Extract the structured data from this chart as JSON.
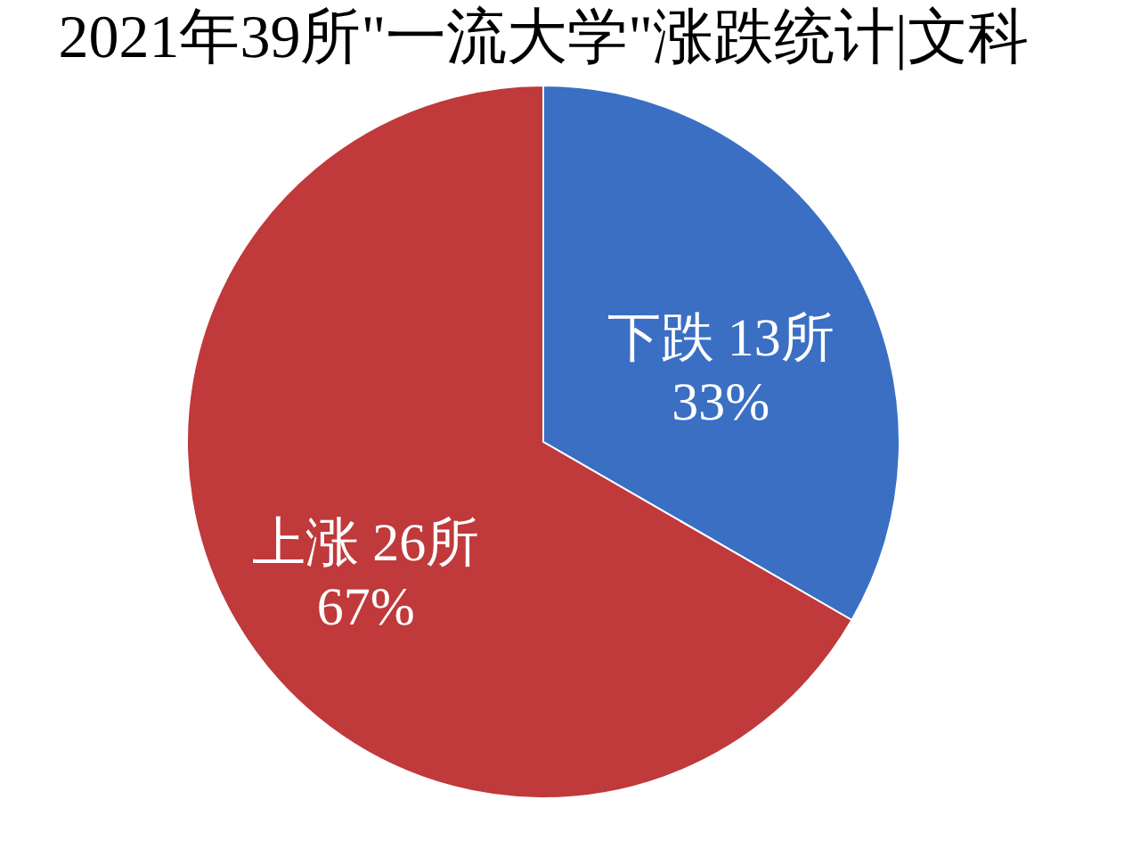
{
  "chart_data": {
    "type": "pie",
    "title": "2021年39所\"一流大学\"涨跌统计|文科",
    "categories": [
      "下跌",
      "上涨"
    ],
    "values": [
      13,
      26
    ],
    "colors": [
      "#3a6fc4",
      "#c0393b"
    ],
    "value_labels": [
      "13所\n33%",
      "26所\n67%"
    ],
    "legend": false
  }
}
